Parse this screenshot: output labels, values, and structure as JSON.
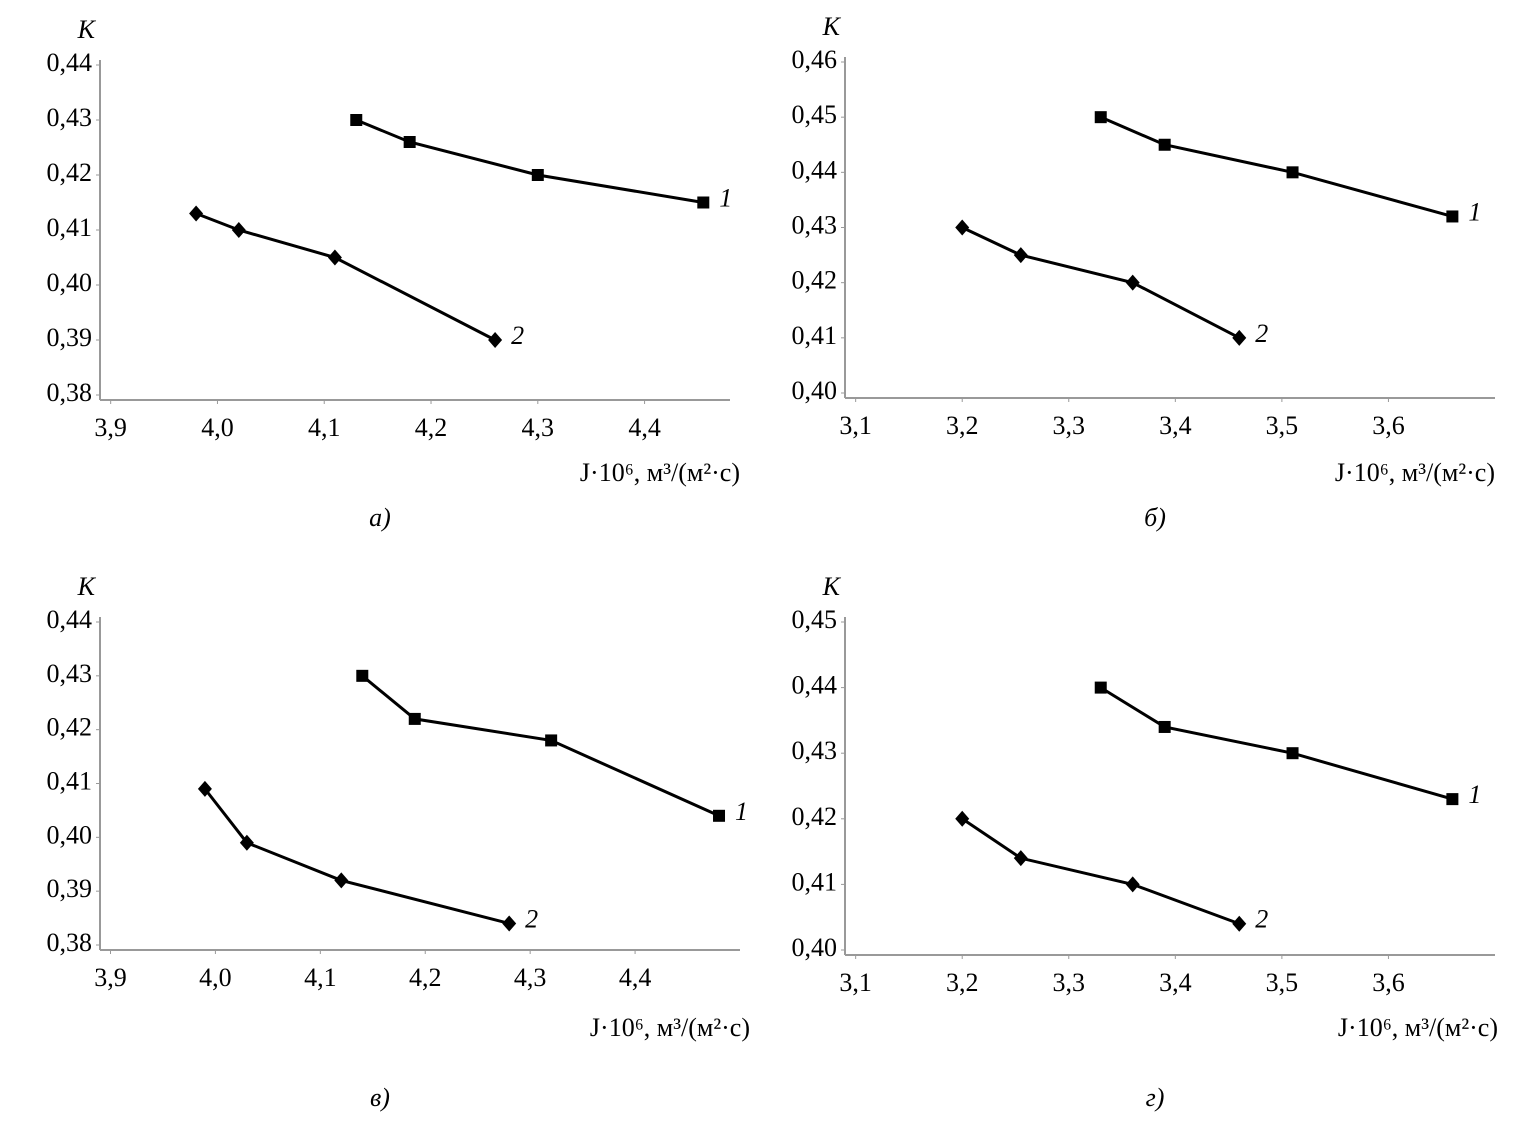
{
  "chart_data": [
    {
      "type": "line",
      "y_label": "K",
      "x_label": "J·10⁶, м³/(м²·с)",
      "caption": "а)",
      "xlim": [
        3.89,
        4.48
      ],
      "ylim": [
        0.38,
        0.44
      ],
      "xticks": [
        {
          "value": 3.9,
          "label": "3,9"
        },
        {
          "value": 4.0,
          "label": "4,0"
        },
        {
          "value": 4.1,
          "label": "4,1"
        },
        {
          "value": 4.2,
          "label": "4,2"
        },
        {
          "value": 4.3,
          "label": "4,3"
        },
        {
          "value": 4.4,
          "label": "4,4"
        }
      ],
      "yticks": [
        {
          "value": 0.38,
          "label": "0,38"
        },
        {
          "value": 0.39,
          "label": "0,39"
        },
        {
          "value": 0.4,
          "label": "0,40"
        },
        {
          "value": 0.41,
          "label": "0,41"
        },
        {
          "value": 0.42,
          "label": "0,42"
        },
        {
          "value": 0.43,
          "label": "0,43"
        },
        {
          "value": 0.44,
          "label": "0,44"
        }
      ],
      "series": [
        {
          "name": "1",
          "color": "#000000",
          "marker": "square",
          "x": [
            4.13,
            4.18,
            4.3,
            4.455
          ],
          "values": [
            0.43,
            0.426,
            0.42,
            0.415
          ]
        },
        {
          "name": "2",
          "color": "#000000",
          "marker": "diamond",
          "x": [
            3.98,
            4.02,
            4.11,
            4.26
          ],
          "values": [
            0.413,
            0.41,
            0.405,
            0.39
          ]
        }
      ]
    },
    {
      "type": "line",
      "y_label": "K",
      "x_label": "J·10⁶, м³/(м²·с)",
      "caption": "б)",
      "xlim": [
        3.09,
        3.7
      ],
      "ylim": [
        0.4,
        0.46
      ],
      "xticks": [
        {
          "value": 3.1,
          "label": "3,1"
        },
        {
          "value": 3.2,
          "label": "3,2"
        },
        {
          "value": 3.3,
          "label": "3,3"
        },
        {
          "value": 3.4,
          "label": "3,4"
        },
        {
          "value": 3.5,
          "label": "3,5"
        },
        {
          "value": 3.6,
          "label": "3,6"
        }
      ],
      "yticks": [
        {
          "value": 0.4,
          "label": "0,40"
        },
        {
          "value": 0.41,
          "label": "0,41"
        },
        {
          "value": 0.42,
          "label": "0,42"
        },
        {
          "value": 0.43,
          "label": "0,43"
        },
        {
          "value": 0.44,
          "label": "0,44"
        },
        {
          "value": 0.45,
          "label": "0,45"
        },
        {
          "value": 0.46,
          "label": "0,46"
        }
      ],
      "series": [
        {
          "name": "1",
          "color": "#000000",
          "marker": "square",
          "x": [
            3.33,
            3.39,
            3.51,
            3.66
          ],
          "values": [
            0.45,
            0.445,
            0.44,
            0.432
          ]
        },
        {
          "name": "2",
          "color": "#000000",
          "marker": "diamond",
          "x": [
            3.2,
            3.255,
            3.36,
            3.46
          ],
          "values": [
            0.43,
            0.425,
            0.42,
            0.41
          ]
        }
      ]
    },
    {
      "type": "line",
      "y_label": "K",
      "x_label": "J·10⁶, м³/(м²·с)",
      "caption": "в)",
      "xlim": [
        3.89,
        4.5
      ],
      "ylim": [
        0.38,
        0.44
      ],
      "xticks": [
        {
          "value": 3.9,
          "label": "3,9"
        },
        {
          "value": 4.0,
          "label": "4,0"
        },
        {
          "value": 4.1,
          "label": "4,1"
        },
        {
          "value": 4.2,
          "label": "4,2"
        },
        {
          "value": 4.3,
          "label": "4,3"
        },
        {
          "value": 4.4,
          "label": "4,4"
        }
      ],
      "yticks": [
        {
          "value": 0.38,
          "label": "0,38"
        },
        {
          "value": 0.39,
          "label": "0,39"
        },
        {
          "value": 0.4,
          "label": "0,40"
        },
        {
          "value": 0.41,
          "label": "0,41"
        },
        {
          "value": 0.42,
          "label": "0,42"
        },
        {
          "value": 0.43,
          "label": "0,43"
        },
        {
          "value": 0.44,
          "label": "0,44"
        }
      ],
      "series": [
        {
          "name": "1",
          "color": "#000000",
          "marker": "square",
          "x": [
            4.14,
            4.19,
            4.32,
            4.48
          ],
          "values": [
            0.43,
            0.422,
            0.418,
            0.404
          ]
        },
        {
          "name": "2",
          "color": "#000000",
          "marker": "diamond",
          "x": [
            3.99,
            4.03,
            4.12,
            4.28
          ],
          "values": [
            0.409,
            0.399,
            0.392,
            0.384
          ]
        }
      ]
    },
    {
      "type": "line",
      "y_label": "K",
      "x_label": "J·10⁶, м³/(м²·с)",
      "caption": "г)",
      "xlim": [
        3.09,
        3.7
      ],
      "ylim": [
        0.4,
        0.45
      ],
      "xticks": [
        {
          "value": 3.1,
          "label": "3,1"
        },
        {
          "value": 3.2,
          "label": "3,2"
        },
        {
          "value": 3.3,
          "label": "3,3"
        },
        {
          "value": 3.4,
          "label": "3,4"
        },
        {
          "value": 3.5,
          "label": "3,5"
        },
        {
          "value": 3.6,
          "label": "3,6"
        }
      ],
      "yticks": [
        {
          "value": 0.4,
          "label": "0,40"
        },
        {
          "value": 0.41,
          "label": "0,41"
        },
        {
          "value": 0.42,
          "label": "0,42"
        },
        {
          "value": 0.43,
          "label": "0,43"
        },
        {
          "value": 0.44,
          "label": "0,44"
        },
        {
          "value": 0.45,
          "label": "0,45"
        }
      ],
      "series": [
        {
          "name": "1",
          "color": "#000000",
          "marker": "square",
          "x": [
            3.33,
            3.39,
            3.51,
            3.66
          ],
          "values": [
            0.44,
            0.434,
            0.43,
            0.423
          ]
        },
        {
          "name": "2",
          "color": "#000000",
          "marker": "diamond",
          "x": [
            3.2,
            3.255,
            3.36,
            3.46
          ],
          "values": [
            0.42,
            0.414,
            0.41,
            0.404
          ]
        }
      ]
    }
  ]
}
